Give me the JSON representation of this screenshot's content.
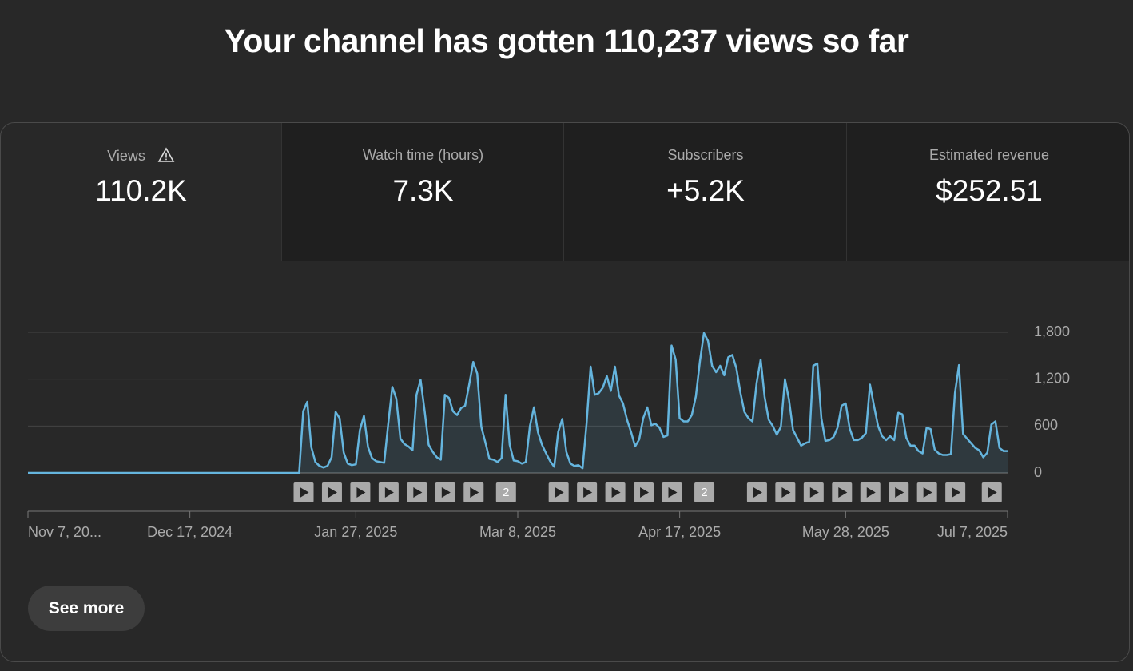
{
  "header": {
    "title": "Your channel has gotten 110,237 views so far"
  },
  "metrics": [
    {
      "label": "Views",
      "value": "110.2K"
    },
    {
      "label": "Watch time (hours)",
      "value": "7.3K"
    },
    {
      "label": "Subscribers",
      "value": "+5.2K"
    },
    {
      "label": "Estimated revenue",
      "value": "$252.51"
    }
  ],
  "chart_data": {
    "type": "line",
    "color": "#65b5de",
    "grid": true,
    "x": [
      "2024-11-07",
      "2025-01-13",
      "2025-01-14",
      "2025-01-15",
      "2025-01-16",
      "2025-01-17",
      "2025-01-18",
      "2025-01-19",
      "2025-01-20",
      "2025-01-21",
      "2025-01-22",
      "2025-01-23",
      "2025-01-24",
      "2025-01-25",
      "2025-01-26",
      "2025-01-27",
      "2025-01-28",
      "2025-01-29",
      "2025-01-30",
      "2025-01-31",
      "2025-02-01",
      "2025-02-02",
      "2025-02-03",
      "2025-02-04",
      "2025-02-05",
      "2025-02-06",
      "2025-02-07",
      "2025-02-08",
      "2025-02-09",
      "2025-02-10",
      "2025-02-11",
      "2025-02-12",
      "2025-02-13",
      "2025-02-14",
      "2025-02-15",
      "2025-02-16",
      "2025-02-17",
      "2025-02-18",
      "2025-02-19",
      "2025-02-20",
      "2025-02-21",
      "2025-02-22",
      "2025-02-23",
      "2025-02-24",
      "2025-02-25",
      "2025-02-26",
      "2025-02-27",
      "2025-02-28",
      "2025-03-01",
      "2025-03-02",
      "2025-03-03",
      "2025-03-04",
      "2025-03-05",
      "2025-03-06",
      "2025-03-07",
      "2025-03-08",
      "2025-03-09",
      "2025-03-10",
      "2025-03-11",
      "2025-03-12",
      "2025-03-13",
      "2025-03-14",
      "2025-03-15",
      "2025-03-16",
      "2025-03-17",
      "2025-03-18",
      "2025-03-19",
      "2025-03-20",
      "2025-03-21",
      "2025-03-22",
      "2025-03-23",
      "2025-03-24",
      "2025-03-25",
      "2025-03-26",
      "2025-03-27",
      "2025-03-28",
      "2025-03-29",
      "2025-03-30",
      "2025-03-31",
      "2025-04-01",
      "2025-04-02",
      "2025-04-03",
      "2025-04-04",
      "2025-04-05",
      "2025-04-06",
      "2025-04-07",
      "2025-04-08",
      "2025-04-09",
      "2025-04-10",
      "2025-04-11",
      "2025-04-12",
      "2025-04-13",
      "2025-04-14",
      "2025-04-15",
      "2025-04-16",
      "2025-04-17",
      "2025-04-18",
      "2025-04-19",
      "2025-04-20",
      "2025-04-21",
      "2025-04-22",
      "2025-04-23",
      "2025-04-24",
      "2025-04-25",
      "2025-04-26",
      "2025-04-27",
      "2025-04-28",
      "2025-04-29",
      "2025-04-30",
      "2025-05-01",
      "2025-05-02",
      "2025-05-03",
      "2025-05-04",
      "2025-05-05",
      "2025-05-06",
      "2025-05-07",
      "2025-05-08",
      "2025-05-09",
      "2025-05-10",
      "2025-05-11",
      "2025-05-12",
      "2025-05-13",
      "2025-05-14",
      "2025-05-15",
      "2025-05-16",
      "2025-05-17",
      "2025-05-18",
      "2025-05-19",
      "2025-05-20",
      "2025-05-21",
      "2025-05-22",
      "2025-05-23",
      "2025-05-24",
      "2025-05-25",
      "2025-05-26",
      "2025-05-27",
      "2025-05-28",
      "2025-05-29",
      "2025-05-30",
      "2025-05-31",
      "2025-06-01",
      "2025-06-02",
      "2025-06-03",
      "2025-06-04",
      "2025-06-05",
      "2025-06-06",
      "2025-06-07",
      "2025-06-08",
      "2025-06-09",
      "2025-06-10",
      "2025-06-11",
      "2025-06-12",
      "2025-06-13",
      "2025-06-14",
      "2025-06-15",
      "2025-06-16",
      "2025-06-17",
      "2025-06-18",
      "2025-06-19",
      "2025-06-20",
      "2025-06-21",
      "2025-06-22",
      "2025-06-23",
      "2025-06-24",
      "2025-06-25",
      "2025-06-26",
      "2025-06-27",
      "2025-06-28",
      "2025-06-29",
      "2025-06-30",
      "2025-07-01",
      "2025-07-02",
      "2025-07-03",
      "2025-07-04",
      "2025-07-05",
      "2025-07-06",
      "2025-07-07"
    ],
    "values": [
      0,
      0,
      790,
      910,
      330,
      140,
      90,
      70,
      90,
      200,
      780,
      700,
      260,
      120,
      100,
      110,
      550,
      730,
      330,
      190,
      150,
      140,
      130,
      630,
      1100,
      950,
      440,
      370,
      340,
      290,
      1000,
      1190,
      790,
      360,
      270,
      200,
      170,
      1000,
      960,
      790,
      740,
      830,
      860,
      1130,
      1420,
      1270,
      590,
      390,
      180,
      170,
      140,
      190,
      1000,
      360,
      160,
      150,
      120,
      140,
      600,
      840,
      520,
      360,
      250,
      150,
      80,
      530,
      690,
      270,
      120,
      90,
      100,
      60,
      630,
      1360,
      1000,
      1020,
      1090,
      1240,
      1050,
      1360,
      990,
      890,
      680,
      520,
      340,
      430,
      700,
      840,
      610,
      630,
      580,
      460,
      480,
      1630,
      1450,
      700,
      660,
      660,
      740,
      980,
      1430,
      1790,
      1690,
      1370,
      1290,
      1370,
      1250,
      1480,
      1510,
      1340,
      1030,
      780,
      700,
      660,
      1150,
      1450,
      970,
      680,
      600,
      490,
      590,
      1200,
      940,
      550,
      450,
      350,
      380,
      400,
      1370,
      1400,
      700,
      410,
      420,
      460,
      580,
      860,
      890,
      570,
      420,
      420,
      450,
      510,
      1130,
      860,
      600,
      470,
      420,
      470,
      420,
      770,
      750,
      450,
      350,
      350,
      280,
      250,
      580,
      560,
      300,
      250,
      230,
      230,
      240,
      1020,
      1380,
      500,
      440,
      380,
      320,
      290,
      200,
      260,
      620,
      660,
      320,
      280,
      280
    ],
    "xlim": [
      "2024-11-07",
      "2025-07-07"
    ],
    "xticks": [
      {
        "value": "2024-11-07",
        "label": "Nov 7, 20..."
      },
      {
        "value": "2024-12-17",
        "label": "Dec 17, 2024"
      },
      {
        "value": "2025-01-27",
        "label": "Jan 27, 2025"
      },
      {
        "value": "2025-03-08",
        "label": "Mar 8, 2025"
      },
      {
        "value": "2025-04-17",
        "label": "Apr 17, 2025"
      },
      {
        "value": "2025-05-28",
        "label": "May 28, 2025"
      },
      {
        "value": "2025-07-07",
        "label": "Jul 7, 2025"
      }
    ],
    "ylim": [
      0,
      1800
    ],
    "yticks": [
      0,
      600,
      {
        "value": 1200,
        "label": "1,200"
      },
      {
        "value": 1800,
        "label": "1,800"
      }
    ],
    "markers": [
      {
        "x": "2025-01-14"
      },
      {
        "x": "2025-01-21"
      },
      {
        "x": "2025-01-28"
      },
      {
        "x": "2025-02-04"
      },
      {
        "x": "2025-02-11"
      },
      {
        "x": "2025-02-18"
      },
      {
        "x": "2025-02-25"
      },
      {
        "x": "2025-03-05",
        "count": 2
      },
      {
        "x": "2025-03-18"
      },
      {
        "x": "2025-03-25"
      },
      {
        "x": "2025-04-01"
      },
      {
        "x": "2025-04-08"
      },
      {
        "x": "2025-04-15"
      },
      {
        "x": "2025-04-23",
        "count": 2
      },
      {
        "x": "2025-05-06"
      },
      {
        "x": "2025-05-13"
      },
      {
        "x": "2025-05-20"
      },
      {
        "x": "2025-05-27"
      },
      {
        "x": "2025-06-03"
      },
      {
        "x": "2025-06-10"
      },
      {
        "x": "2025-06-17"
      },
      {
        "x": "2025-06-24"
      },
      {
        "x": "2025-07-03"
      }
    ]
  },
  "button": {
    "label": "See more"
  }
}
